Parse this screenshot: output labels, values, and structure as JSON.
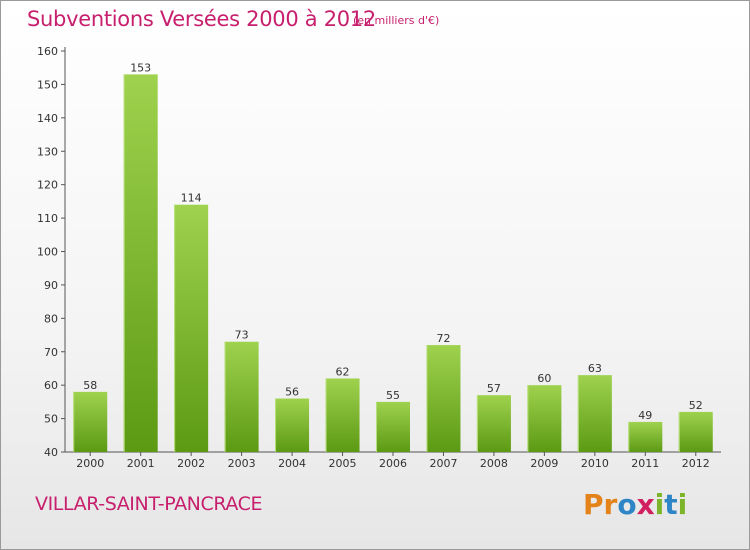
{
  "header": {
    "title": "Subventions Versées 2000 à 2012",
    "unit": "(en milliers d'€)"
  },
  "footer": {
    "commune": "VILLAR-SAINT-PANCRACE",
    "logo_letters": [
      "P",
      "r",
      "o",
      "x",
      "i",
      "t",
      "i"
    ]
  },
  "colors": {
    "title": "#c71f6d",
    "bar_light": "#9fd24e",
    "bar_dark": "#5c9a14",
    "logo": [
      "#e3831a",
      "#e3831a",
      "#2f86c7",
      "#d21f5f",
      "#7db52a",
      "#2f86c7",
      "#7db52a"
    ]
  },
  "chart_data": {
    "type": "bar",
    "title": "Subventions Versées 2000 à 2012",
    "subtitle": "(en milliers d'€)",
    "categories": [
      "2000",
      "2001",
      "2002",
      "2003",
      "2004",
      "2005",
      "2006",
      "2007",
      "2008",
      "2009",
      "2010",
      "2011",
      "2012"
    ],
    "values": [
      58,
      153,
      114,
      73,
      56,
      62,
      55,
      72,
      57,
      60,
      63,
      49,
      52
    ],
    "ylim": [
      40,
      160
    ],
    "yticks": [
      40,
      50,
      60,
      70,
      80,
      90,
      100,
      110,
      120,
      130,
      140,
      150,
      160
    ],
    "grid": false
  }
}
